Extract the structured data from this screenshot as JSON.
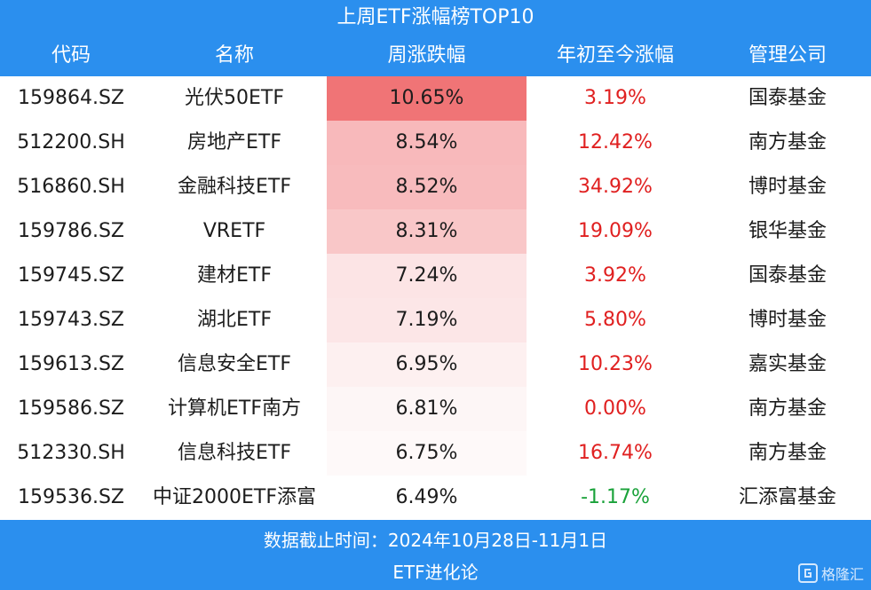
{
  "title": "上周ETF涨幅榜TOP10",
  "headers": [
    "代码",
    "名称",
    "周涨跌幅",
    "年初至今涨幅",
    "管理公司"
  ],
  "rows": [
    {
      "code": "159864.SZ",
      "name": "光伏50ETF",
      "weekly": "10.65%",
      "ytd": "3.19%",
      "company": "国泰基金",
      "heat": "#f07476",
      "ytd_sign": "pos"
    },
    {
      "code": "512200.SH",
      "name": "房地产ETF",
      "weekly": "8.54%",
      "ytd": "12.42%",
      "company": "南方基金",
      "heat": "#f8b9bb",
      "ytd_sign": "pos"
    },
    {
      "code": "516860.SH",
      "name": "金融科技ETF",
      "weekly": "8.52%",
      "ytd": "34.92%",
      "company": "博时基金",
      "heat": "#f8bbbd",
      "ytd_sign": "pos"
    },
    {
      "code": "159786.SZ",
      "name": "VRETF",
      "weekly": "8.31%",
      "ytd": "19.09%",
      "company": "银华基金",
      "heat": "#f9c7c8",
      "ytd_sign": "pos"
    },
    {
      "code": "159745.SZ",
      "name": "建材ETF",
      "weekly": "7.24%",
      "ytd": "3.92%",
      "company": "国泰基金",
      "heat": "#fce4e5",
      "ytd_sign": "pos"
    },
    {
      "code": "159743.SZ",
      "name": "湖北ETF",
      "weekly": "7.19%",
      "ytd": "5.80%",
      "company": "博时基金",
      "heat": "#fce6e7",
      "ytd_sign": "pos"
    },
    {
      "code": "159613.SZ",
      "name": "信息安全ETF",
      "weekly": "6.95%",
      "ytd": "10.23%",
      "company": "嘉实基金",
      "heat": "#fdf0f0",
      "ytd_sign": "pos"
    },
    {
      "code": "159586.SZ",
      "name": "计算机ETF南方",
      "weekly": "6.81%",
      "ytd": "0.00%",
      "company": "南方基金",
      "heat": "#fdf6f6",
      "ytd_sign": "pos"
    },
    {
      "code": "512330.SH",
      "name": "信息科技ETF",
      "weekly": "6.75%",
      "ytd": "16.74%",
      "company": "南方基金",
      "heat": "#fef9f9",
      "ytd_sign": "pos"
    },
    {
      "code": "159536.SZ",
      "name": "中证2000ETF添富",
      "weekly": "6.49%",
      "ytd": "-1.17%",
      "company": "汇添富基金",
      "heat": "#ffffff",
      "ytd_sign": "neg"
    }
  ],
  "footer": {
    "date_line": "数据截止时间：2024年10月28日-11月1日",
    "source": "ETF进化论"
  },
  "watermark": {
    "text": "格隆汇",
    "icon": "logo-icon"
  },
  "colors": {
    "header_bg": "#2b8fee",
    "positive": "#e02020",
    "negative": "#1aa23a"
  }
}
